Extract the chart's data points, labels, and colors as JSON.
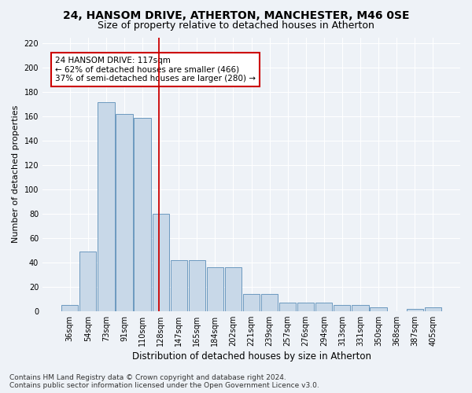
{
  "title1": "24, HANSOM DRIVE, ATHERTON, MANCHESTER, M46 0SE",
  "title2": "Size of property relative to detached houses in Atherton",
  "xlabel": "Distribution of detached houses by size in Atherton",
  "ylabel": "Number of detached properties",
  "categories": [
    "36sqm",
    "54sqm",
    "73sqm",
    "91sqm",
    "110sqm",
    "128sqm",
    "147sqm",
    "165sqm",
    "184sqm",
    "202sqm",
    "221sqm",
    "239sqm",
    "257sqm",
    "276sqm",
    "294sqm",
    "313sqm",
    "331sqm",
    "350sqm",
    "368sqm",
    "387sqm",
    "405sqm"
  ],
  "values": [
    5,
    49,
    172,
    162,
    159,
    80,
    42,
    42,
    36,
    36,
    14,
    14,
    7,
    7,
    7,
    5,
    5,
    3,
    0,
    2,
    3
  ],
  "bar_color": "#c8d8e8",
  "bar_edge_color": "#5b8db8",
  "vline_color": "#cc0000",
  "annotation_text": "24 HANSOM DRIVE: 117sqm\n← 62% of detached houses are smaller (466)\n37% of semi-detached houses are larger (280) →",
  "annotation_box_color": "#ffffff",
  "annotation_box_edge": "#cc0000",
  "footer_text": "Contains HM Land Registry data © Crown copyright and database right 2024.\nContains public sector information licensed under the Open Government Licence v3.0.",
  "ylim": [
    0,
    225
  ],
  "yticks": [
    0,
    20,
    40,
    60,
    80,
    100,
    120,
    140,
    160,
    180,
    200,
    220
  ],
  "bg_color": "#eef2f7",
  "grid_color": "#ffffff",
  "title1_fontsize": 10,
  "title2_fontsize": 9,
  "xlabel_fontsize": 8.5,
  "ylabel_fontsize": 8,
  "tick_fontsize": 7,
  "footer_fontsize": 6.5,
  "ann_fontsize": 7.5
}
